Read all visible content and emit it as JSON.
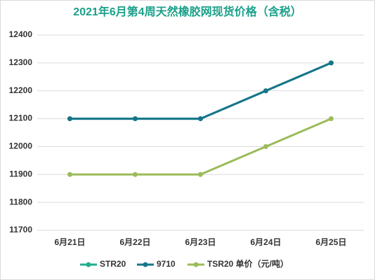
{
  "chart_data": {
    "type": "line",
    "title": "2021年6月第4周天然橡胶网现货价格（含税）",
    "categories": [
      "6月21日",
      "6月22日",
      "6月23日",
      "6月24日",
      "6月25日"
    ],
    "series": [
      {
        "name": "STR20",
        "color": "#1fae8c",
        "values": [
          12100,
          12100,
          12100,
          12200,
          12300
        ]
      },
      {
        "name": "9710",
        "color": "#17758a",
        "values": [
          12100,
          12100,
          12100,
          12200,
          12300
        ]
      },
      {
        "name": "TSR20 单价（元/吨）",
        "color": "#9bbb59",
        "values": [
          11900,
          11900,
          11900,
          12000,
          12100
        ]
      }
    ],
    "ylim": [
      11700,
      12400
    ],
    "yticks": [
      11700,
      11800,
      11900,
      12000,
      12100,
      12200,
      12300,
      12400
    ],
    "grid": true,
    "legend": "bottom"
  }
}
